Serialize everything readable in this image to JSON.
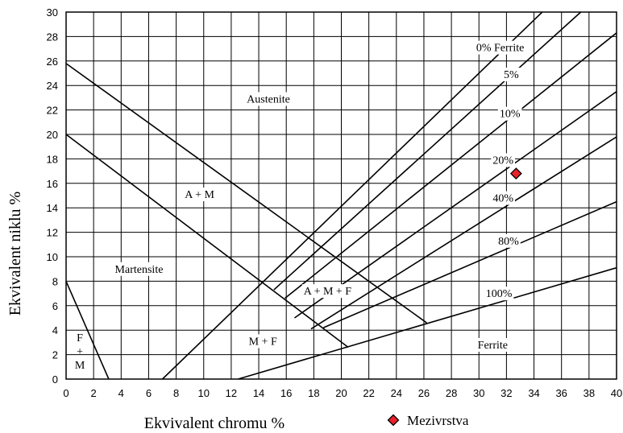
{
  "chart_data": {
    "type": "scatter",
    "xlabel": "Ekvivalent chromu %",
    "ylabel": "Ekvivalent niklu %",
    "xlim": [
      0,
      40
    ],
    "ylim": [
      0,
      30
    ],
    "x_ticks": [
      0,
      2,
      4,
      6,
      8,
      10,
      12,
      14,
      16,
      18,
      20,
      22,
      24,
      26,
      28,
      30,
      32,
      34,
      36,
      38,
      40
    ],
    "y_ticks": [
      0,
      2,
      4,
      6,
      8,
      10,
      12,
      14,
      16,
      18,
      20,
      22,
      24,
      26,
      28,
      30
    ],
    "grid": true,
    "lines": [
      {
        "name": "martensite-boundary-upper",
        "points": [
          [
            0,
            25.8
          ],
          [
            26.2,
            4.6
          ]
        ]
      },
      {
        "name": "martensite-boundary-lower",
        "points": [
          [
            0,
            20
          ],
          [
            20.5,
            2.6
          ]
        ]
      },
      {
        "name": "ferrite-boundary-small",
        "points": [
          [
            0,
            8
          ],
          [
            3.1,
            0
          ]
        ]
      },
      {
        "name": "0% Ferrite",
        "points": [
          [
            7.0,
            0
          ],
          [
            34.6,
            30
          ]
        ]
      },
      {
        "name": "5%",
        "points": [
          [
            15.1,
            7.3
          ],
          [
            37.4,
            30
          ]
        ]
      },
      {
        "name": "10%",
        "points": [
          [
            15.9,
            6.6
          ],
          [
            40,
            28.3
          ]
        ]
      },
      {
        "name": "20%",
        "points": [
          [
            16.6,
            5.0
          ],
          [
            40,
            23.5
          ]
        ]
      },
      {
        "name": "40%",
        "points": [
          [
            17.8,
            4.1
          ],
          [
            40,
            19.8
          ]
        ]
      },
      {
        "name": "80%",
        "points": [
          [
            18.7,
            4.2
          ],
          [
            40,
            14.5
          ]
        ]
      },
      {
        "name": "100%",
        "points": [
          [
            12.5,
            0
          ],
          [
            40,
            9.1
          ]
        ]
      }
    ],
    "line_labels": [
      {
        "text": "0% Ferrite",
        "x": 29.8,
        "y": 26.8
      },
      {
        "text": "5%",
        "x": 31.8,
        "y": 24.6
      },
      {
        "text": "10%",
        "x": 31.5,
        "y": 21.4
      },
      {
        "text": "20%",
        "x": 31.0,
        "y": 17.6
      },
      {
        "text": "40%",
        "x": 31.0,
        "y": 14.5
      },
      {
        "text": "80%",
        "x": 31.4,
        "y": 11.0
      },
      {
        "text": "100%",
        "x": 30.5,
        "y": 6.7
      }
    ],
    "region_labels": [
      {
        "text": "Austenite",
        "x": 14.7,
        "y": 22.6
      },
      {
        "text": "A + M",
        "x": 9.7,
        "y": 14.8
      },
      {
        "text": "Martensite",
        "x": 5.3,
        "y": 8.7
      },
      {
        "text": "A + M + F",
        "x": 19.0,
        "y": 6.9
      },
      {
        "text": "M + F",
        "x": 14.3,
        "y": 2.8
      },
      {
        "text": "Ferrite",
        "x": 31.0,
        "y": 2.5
      }
    ],
    "phase_label_fm": [
      "F",
      "+",
      "M"
    ],
    "series": [
      {
        "name": "Mezivrstva",
        "points": [
          [
            32.7,
            16.8
          ]
        ],
        "color": "#e8212b",
        "marker": "diamond"
      }
    ],
    "legend": {
      "placement": "bottom-right"
    }
  }
}
